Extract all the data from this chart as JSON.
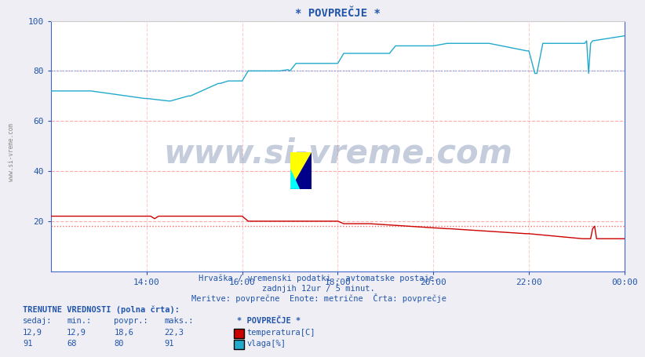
{
  "title": "* POVPREČJE *",
  "bg_color": "#eeeef4",
  "plot_bg_color": "#ffffff",
  "grid_color_h": "#ffaaaa",
  "grid_color_v": "#ffcccc",
  "xlim": [
    0,
    288
  ],
  "ylim": [
    0,
    100
  ],
  "yticks": [
    20,
    40,
    60,
    80,
    100
  ],
  "xtick_labels": [
    "14:00",
    "16:00",
    "18:00",
    "20:00",
    "22:00",
    "00:00"
  ],
  "xtick_positions": [
    48,
    96,
    144,
    192,
    240,
    288
  ],
  "temp_color": "#cc0000",
  "hum_color": "#22aacc",
  "ref_line_color": "#ff6666",
  "ref_line_hum_color": "#66aaff",
  "watermark_text": "www.si-vreme.com",
  "watermark_color": "#1a3a7a",
  "subtitle1": "Hrvaška / vremenski podatki - avtomatske postaje.",
  "subtitle2": "zadnjih 12ur / 5 minut.",
  "subtitle3": "Meritve: povprečne  Enote: metrične  Črta: povprečje",
  "info_title": "TRENUTNE VREDNOSTI (polna črta):",
  "col_headers": [
    "sedaj:",
    "min.:",
    "povpr.:",
    "maks.:",
    "* POVPREČJE *"
  ],
  "temp_row": [
    "12,9",
    "12,9",
    "18,6",
    "22,3",
    "temperatura[C]"
  ],
  "hum_row": [
    "91",
    "68",
    "80",
    "91",
    "vlaga[%]"
  ],
  "text_color": "#2255aa",
  "ref_temp": 18.0,
  "ref_hum": 80.0,
  "left_label": "www.si-vreme.com"
}
